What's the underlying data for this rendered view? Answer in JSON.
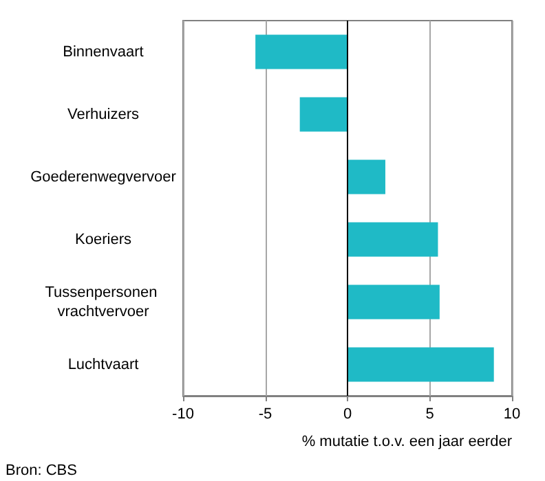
{
  "chart_data": {
    "type": "bar",
    "orientation": "horizontal",
    "categories": [
      "Binnenvaart",
      "Verhuizers",
      "Goederenwegvervoer",
      "Koeriers",
      "Tussenpersonen vrachtvervoer",
      "Luchtvaart"
    ],
    "values": [
      -5.6,
      -2.9,
      2.3,
      5.5,
      5.6,
      8.9
    ],
    "color": "#1fbac6",
    "xlim": [
      -10,
      10
    ],
    "xticks": [
      -10,
      -5,
      0,
      5,
      10
    ],
    "grid": "x",
    "xlabel": "% mutatie t.o.v. een jaar eerder",
    "annotations": [
      "Bron: CBS"
    ]
  }
}
